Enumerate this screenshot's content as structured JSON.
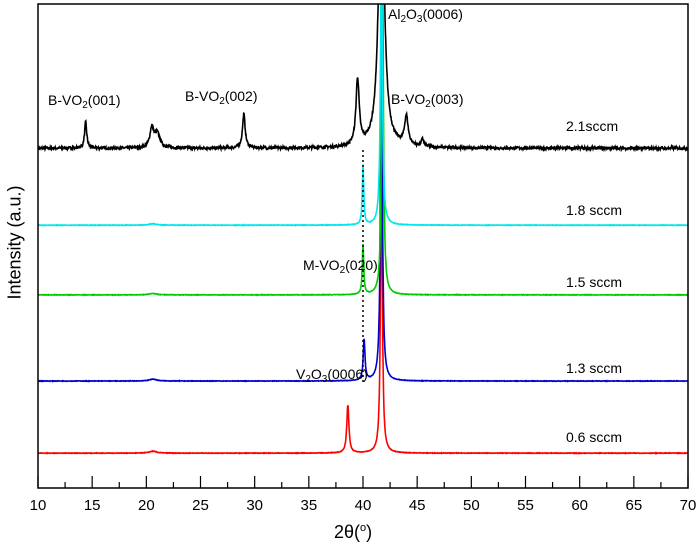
{
  "chart_data": {
    "type": "line",
    "xlabel": {
      "pre": "2θ(",
      "sup": "o",
      "post": ")"
    },
    "ylabel": "Intensity (a.u.)",
    "xlim": [
      10,
      70
    ],
    "ylim": [
      0,
      100
    ],
    "xticks": [
      10,
      15,
      20,
      25,
      30,
      35,
      40,
      45,
      50,
      55,
      60,
      65,
      70
    ],
    "grid": false,
    "series": [
      {
        "name": "2.1sccm",
        "color": "#000000",
        "offset": 70.2,
        "noise": 0.6,
        "peaks": [
          [
            14.4,
            5.4,
            0.12
          ],
          [
            20.5,
            4.0,
            0.2
          ],
          [
            21.0,
            3.0,
            0.3
          ],
          [
            29.0,
            7.0,
            0.15
          ],
          [
            39.5,
            13.7,
            0.18
          ],
          [
            41.7,
            60,
            0.3
          ],
          [
            44.0,
            6.0,
            0.2
          ],
          [
            45.5,
            1.5,
            0.15
          ]
        ]
      },
      {
        "name": "0.6 sccm",
        "color": "#ff0000",
        "offset": 7.2,
        "noise": 0.1,
        "peaks": [
          [
            20.6,
            0.4,
            0.4
          ],
          [
            38.6,
            9.9,
            0.12
          ],
          [
            41.7,
            60,
            0.1
          ]
        ]
      },
      {
        "name": "1.3 sccm",
        "color": "#0000cc",
        "offset": 22.1,
        "noise": 0.1,
        "peaks": [
          [
            20.6,
            0.4,
            0.4
          ],
          [
            40.1,
            8.5,
            0.1
          ],
          [
            41.7,
            75,
            0.1
          ]
        ]
      },
      {
        "name": "1.5 sccm",
        "color": "#00cc00",
        "offset": 39.9,
        "noise": 0.1,
        "peaks": [
          [
            20.6,
            0.3,
            0.4
          ],
          [
            40.0,
            10.3,
            0.08
          ],
          [
            41.8,
            70,
            0.1
          ]
        ]
      },
      {
        "name": "1.8 sccm",
        "color": "#00e5ee",
        "offset": 54.3,
        "noise": 0.1,
        "peaks": [
          [
            20.6,
            0.3,
            0.4
          ],
          [
            40.0,
            12.4,
            0.08
          ],
          [
            41.7,
            60,
            0.1
          ]
        ]
      }
    ],
    "reference_line": {
      "x": 40.0,
      "style": "dotted"
    },
    "annotations": [
      {
        "pre": "B-VO",
        "sub": "2",
        "post": "(001)"
      },
      {
        "pre": "B-VO",
        "sub": "2",
        "post": "(002)"
      },
      {
        "pre": "B-VO",
        "sub": "2",
        "post": "(003)"
      },
      {
        "pre": "Al",
        "sub": "2",
        "mid": "O",
        "sub2": "3",
        "post": "(0006)"
      },
      {
        "pre": "M-VO",
        "sub": "2",
        "post": "(020)"
      },
      {
        "pre": "V",
        "sub": "2",
        "mid": "O",
        "sub2": "3",
        "post": "(0006)"
      }
    ]
  }
}
